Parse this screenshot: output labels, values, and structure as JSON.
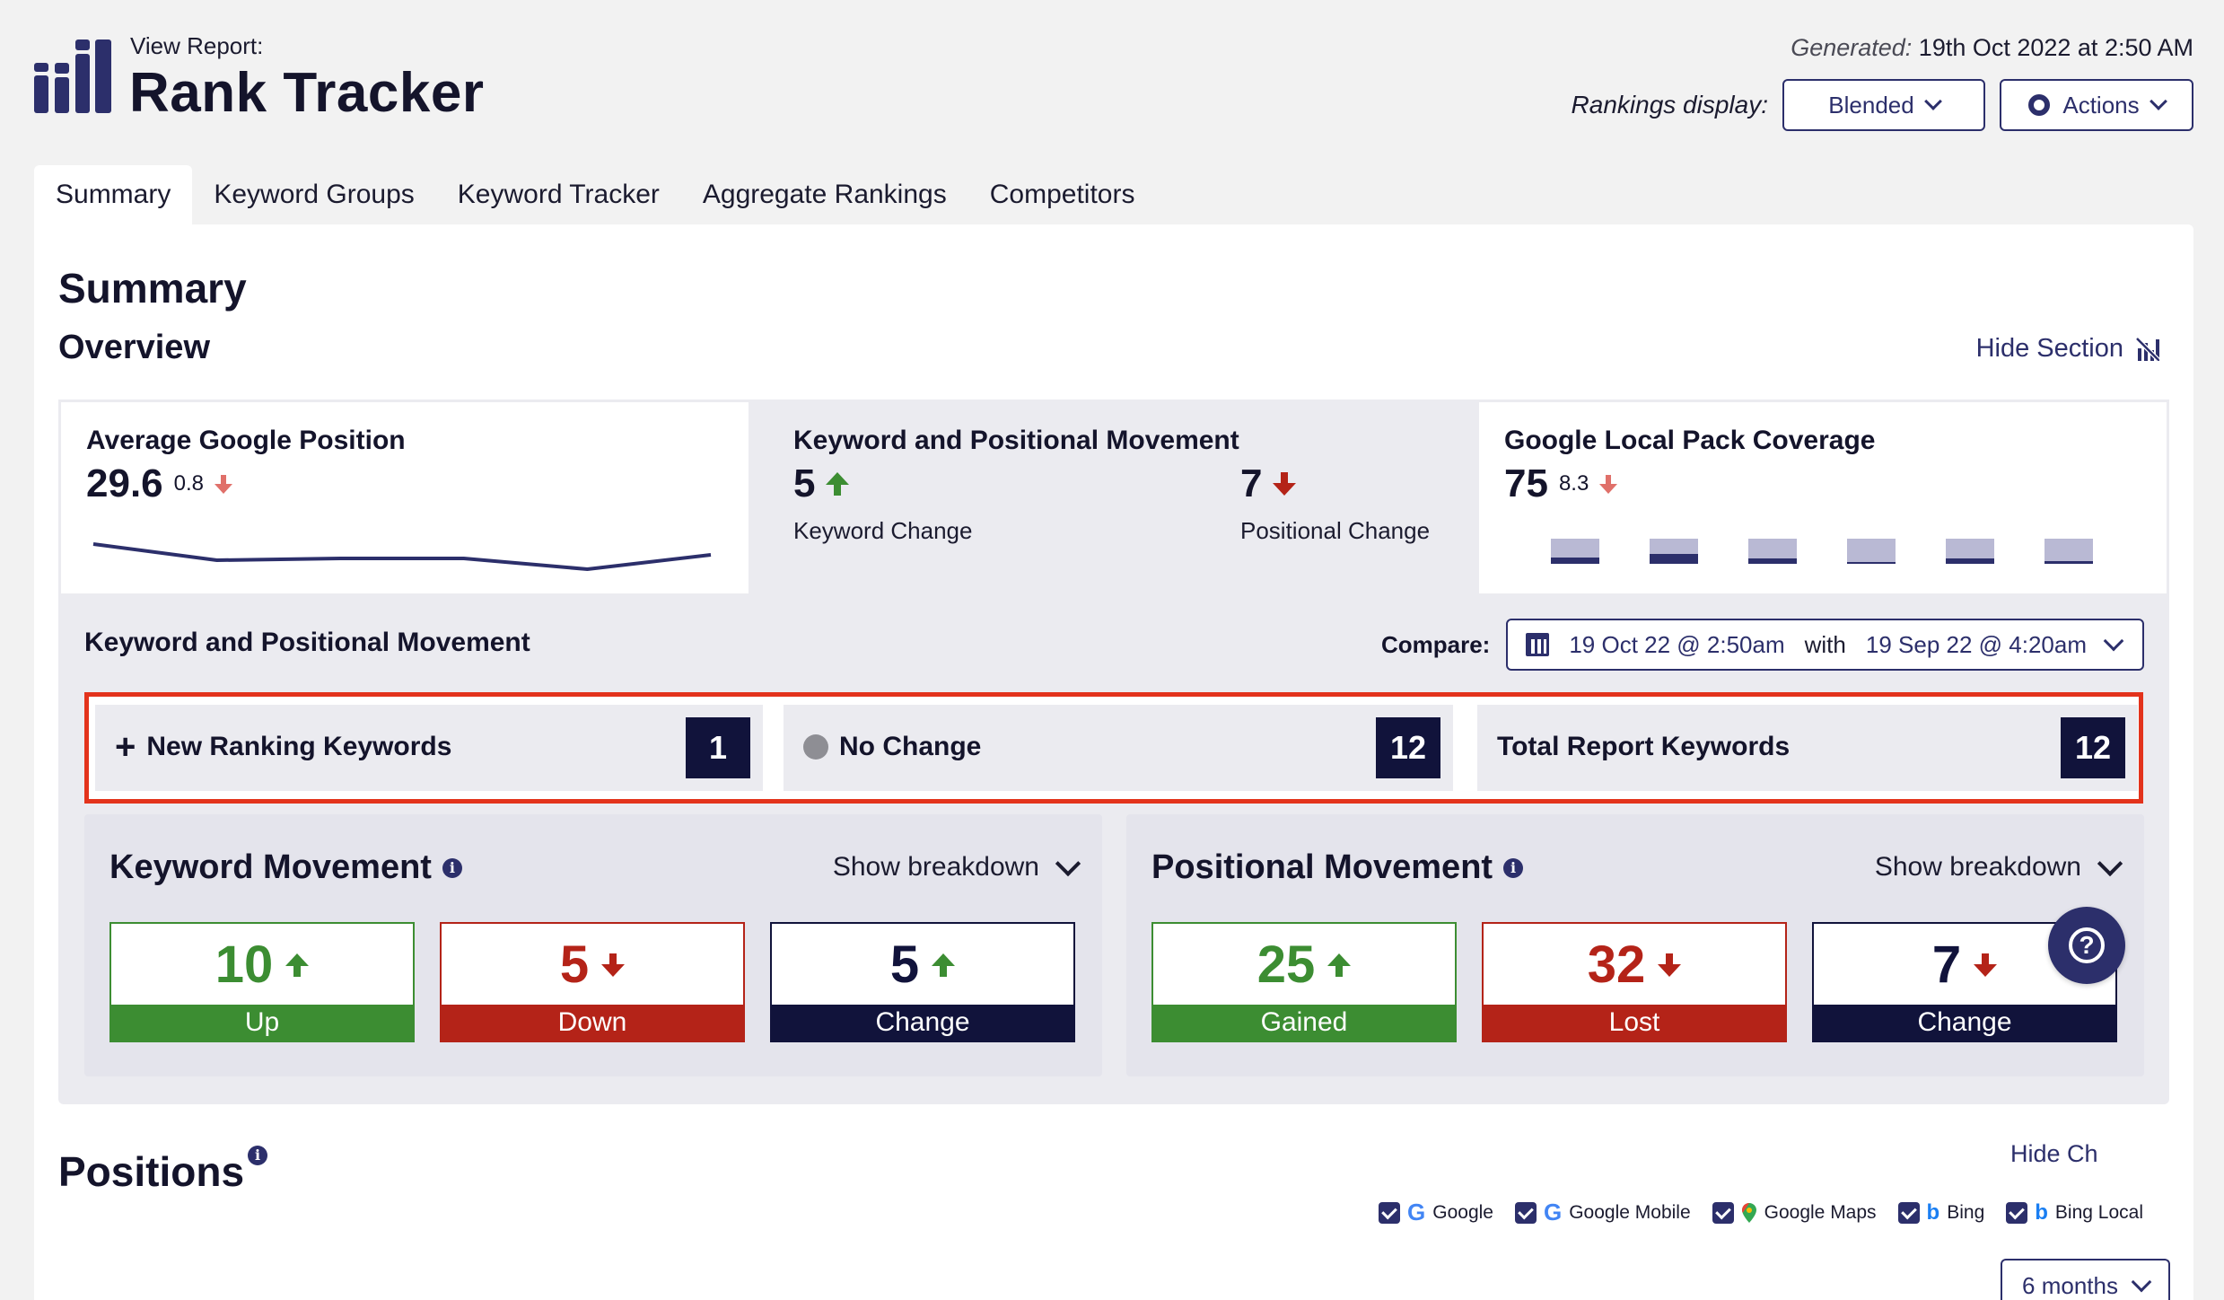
{
  "header": {
    "view_report_label": "View Report:",
    "title": "Rank Tracker",
    "generated_label": "Generated:",
    "generated_value": "19th Oct 2022 at 2:50 AM",
    "rankings_display_label": "Rankings display:",
    "rankings_display_value": "Blended",
    "actions_label": "Actions"
  },
  "tabs": [
    {
      "label": "Summary",
      "active": true
    },
    {
      "label": "Keyword Groups"
    },
    {
      "label": "Keyword Tracker"
    },
    {
      "label": "Aggregate Rankings"
    },
    {
      "label": "Competitors"
    }
  ],
  "summary": {
    "title": "Summary",
    "overview_title": "Overview",
    "hide_section_label": "Hide Section"
  },
  "cards": {
    "avg_position": {
      "title": "Average Google Position",
      "value": "29.6",
      "delta": "0.8",
      "delta_direction": "down",
      "sparkline": [
        29.0,
        29.9,
        29.8,
        29.8,
        30.4,
        29.6
      ]
    },
    "movement": {
      "title": "Keyword and Positional Movement",
      "keyword_value": "5",
      "keyword_direction": "up",
      "keyword_label": "Keyword Change",
      "positional_value": "7",
      "positional_direction": "down",
      "positional_label": "Positional Change"
    },
    "local_pack": {
      "title": "Google Local Pack Coverage",
      "value": "75",
      "delta": "8.3",
      "delta_direction": "down",
      "bars": [
        0.25,
        0.4,
        0.2,
        0.0,
        0.2,
        0.1
      ]
    }
  },
  "kpm": {
    "title": "Keyword and Positional Movement",
    "compare_label": "Compare:",
    "date_from": "19 Oct 22 @ 2:50am",
    "with_label": "with",
    "date_to": "19 Sep 22 @ 4:20am",
    "stats": [
      {
        "label": "New Ranking Keywords",
        "count": "1",
        "icon": "plus-icon"
      },
      {
        "label": "No Change",
        "count": "12",
        "icon": "dot-icon"
      },
      {
        "label": "Total Report Keywords",
        "count": "12",
        "icon": ""
      }
    ]
  },
  "keyword_movement": {
    "title": "Keyword Movement",
    "breakdown_label": "Show breakdown",
    "boxes": [
      {
        "value": "10",
        "direction": "up",
        "label": "Up",
        "color": "#3c8d32"
      },
      {
        "value": "5",
        "direction": "down",
        "label": "Down",
        "color": "#b42318"
      },
      {
        "value": "5",
        "direction": "up",
        "label": "Change",
        "color": "#11133b"
      }
    ]
  },
  "positional_movement": {
    "title": "Positional Movement",
    "breakdown_label": "Show breakdown",
    "boxes": [
      {
        "value": "25",
        "direction": "up",
        "label": "Gained",
        "color": "#3c8d32"
      },
      {
        "value": "32",
        "direction": "down",
        "label": "Lost",
        "color": "#b42318"
      },
      {
        "value": "7",
        "direction": "down",
        "label": "Change",
        "color": "#11133b"
      }
    ]
  },
  "positions": {
    "title": "Positions",
    "hide_charts_label": "Hide Ch",
    "engines": [
      "Google",
      "Google Mobile",
      "Google Maps",
      "Bing",
      "Bing Local"
    ],
    "range_label": "6 months"
  },
  "colors": {
    "brand": "#2c2f6b",
    "up": "#3c8d32",
    "down": "#b42318",
    "highlight": "#e3331c"
  }
}
